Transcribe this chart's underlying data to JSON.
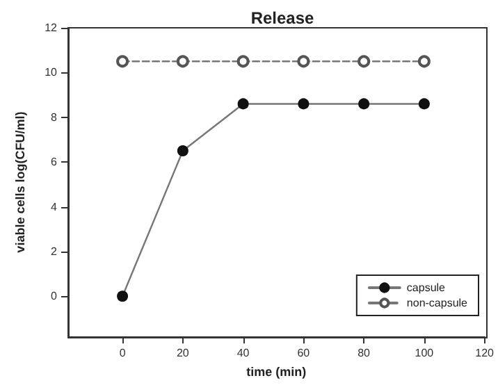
{
  "chart_data": {
    "type": "line",
    "title": "Release",
    "xlabel": "time (min)",
    "ylabel": "viable cells log(CFU/ml)",
    "x": [
      0,
      20,
      40,
      60,
      80,
      100
    ],
    "series": [
      {
        "name": "capsule",
        "color": "#111111",
        "values": [
          0,
          6.5,
          8.6,
          8.6,
          8.6,
          8.6
        ],
        "line_style": "solid"
      },
      {
        "name": "non-capsule",
        "color": "#555555",
        "values": [
          10.5,
          10.5,
          10.5,
          10.5,
          10.5,
          10.5
        ],
        "line_style": "dashed"
      }
    ],
    "xlim": [
      -18,
      120
    ],
    "xticks": [
      0,
      20,
      40,
      60,
      80,
      100,
      120
    ],
    "ylim": [
      -1.8,
      12
    ],
    "yticks": [
      0,
      2,
      4,
      6,
      8,
      10,
      12
    ],
    "grid": false,
    "legend": "bottom right",
    "marker": "circle"
  }
}
